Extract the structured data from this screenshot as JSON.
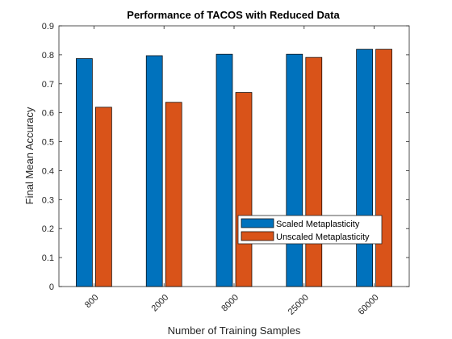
{
  "chart_data": {
    "type": "bar",
    "title": "Performance of TACOS with Reduced Data",
    "xlabel": "Number of Training Samples",
    "ylabel": "Final Mean Accuracy",
    "categories": [
      "800",
      "2000",
      "8000",
      "25000",
      "60000"
    ],
    "series": [
      {
        "name": "Scaled Metaplasticity",
        "color": "#0072BD",
        "values": [
          0.787,
          0.797,
          0.802,
          0.802,
          0.819
        ]
      },
      {
        "name": "Unscaled Metaplasticity",
        "color": "#D95319",
        "values": [
          0.619,
          0.636,
          0.67,
          0.791,
          0.819
        ]
      }
    ],
    "ylim": [
      0,
      0.9
    ],
    "yticks": [
      "0",
      "0.1",
      "0.2",
      "0.3",
      "0.4",
      "0.5",
      "0.6",
      "0.7",
      "0.8",
      "0.9"
    ],
    "grid": false,
    "legend_position": "lower-right"
  }
}
